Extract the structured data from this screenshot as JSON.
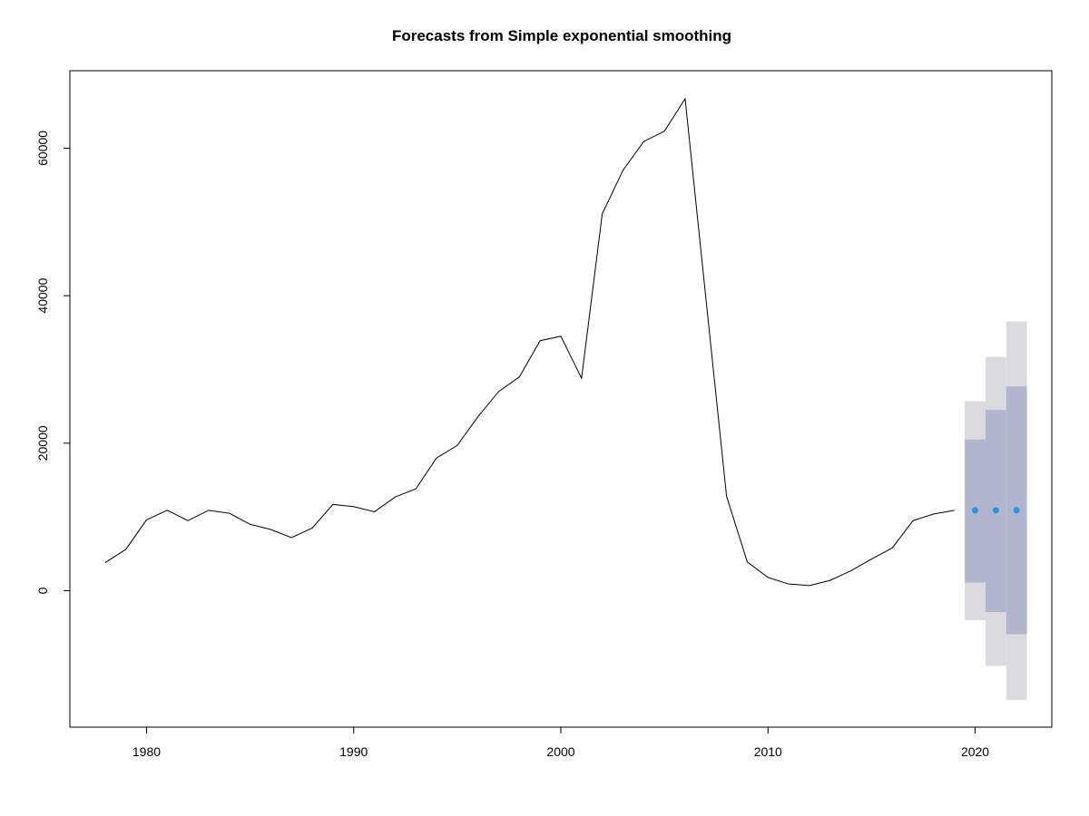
{
  "chart_data": {
    "type": "line",
    "title": "Forecasts from Simple exponential smoothing",
    "xlabel": "",
    "ylabel": "",
    "xlim": [
      1976.3,
      2023.7
    ],
    "ylim": [
      -18500,
      70500
    ],
    "x_ticks": [
      {
        "value": 1980,
        "label": "1980"
      },
      {
        "value": 1990,
        "label": "1990"
      },
      {
        "value": 2000,
        "label": "2000"
      },
      {
        "value": 2010,
        "label": "2010"
      },
      {
        "value": 2020,
        "label": "2020"
      }
    ],
    "y_ticks": [
      {
        "value": 0,
        "label": "0"
      },
      {
        "value": 20000,
        "label": "20000"
      },
      {
        "value": 40000,
        "label": "40000"
      },
      {
        "value": 60000,
        "label": "60000"
      }
    ],
    "grid": false,
    "series": [
      {
        "x": [
          1978,
          1979,
          1980,
          1981,
          1982,
          1983,
          1984,
          1985,
          1986,
          1987,
          1988,
          1989,
          1990,
          1991,
          1992,
          1993,
          1994,
          1995,
          1996,
          1997,
          1998,
          1999,
          2000,
          2001,
          2002,
          2003,
          2004,
          2005,
          2006,
          2007,
          2008,
          2009,
          2010,
          2011,
          2012,
          2013,
          2014,
          2015,
          2016,
          2017,
          2018,
          2019
        ],
        "values": [
          3800,
          5600,
          9600,
          10900,
          9500,
          10900,
          10500,
          9000,
          8300,
          7200,
          8500,
          11700,
          11400,
          10700,
          12700,
          13800,
          18000,
          19700,
          23600,
          27000,
          29000,
          33900,
          34500,
          28800,
          51100,
          57000,
          60900,
          62300,
          66700,
          39700,
          12800,
          3900,
          1800,
          900,
          700,
          1400,
          2700,
          4300,
          5800,
          9500,
          10400,
          10900
        ],
        "color": "#000000"
      }
    ],
    "forecast": {
      "x": [
        2020,
        2021,
        2022
      ],
      "point": [
        10900,
        10900,
        10900
      ],
      "lo80": [
        1100,
        -2900,
        -5900
      ],
      "hi80": [
        20500,
        24500,
        27700
      ],
      "lo95": [
        -4000,
        -10200,
        -14800
      ],
      "hi95": [
        25700,
        31700,
        36500
      ],
      "point_color": "#2297e6",
      "band80_color": "#b1b5ce",
      "band95_color": "#dbdbdf"
    }
  }
}
